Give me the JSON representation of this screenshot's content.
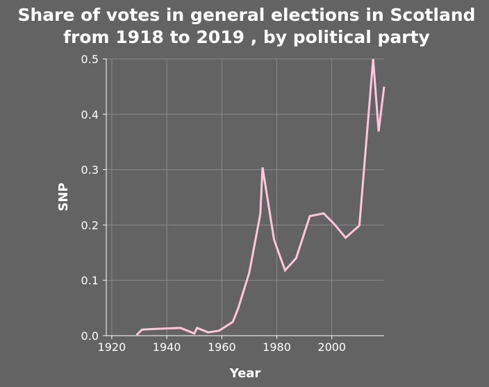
{
  "chart_data": {
    "type": "line",
    "title": [
      "Share of votes in general elections in Scotland",
      "from 1918 to 2019 , by political party"
    ],
    "xlabel": "Year",
    "ylabel": "SNP",
    "xlim": [
      1918,
      2019
    ],
    "ylim": [
      0,
      0.5
    ],
    "x_ticks": [
      1920,
      1940,
      1960,
      1980,
      2000
    ],
    "x_tick_labels": [
      "1920",
      "1940",
      "1960",
      "1980",
      "2000"
    ],
    "y_ticks": [
      0,
      0.1,
      0.2,
      0.3,
      0.4,
      0.5
    ],
    "y_tick_labels": [
      "0.0",
      "0.1",
      "0.2",
      "0.3",
      "0.4",
      "0.5"
    ],
    "grid": true,
    "line_color": "#ffc6dc",
    "series": [
      {
        "x": [
          1929,
          1931,
          1935,
          1945,
          1950,
          1951,
          1955,
          1959,
          1964,
          1966,
          1970,
          1974,
          1974.8,
          1979,
          1983,
          1987,
          1992,
          1997,
          2001,
          2005,
          2010,
          2015,
          2017,
          2019
        ],
        "values": [
          0.001,
          0.011,
          0.012,
          0.014,
          0.004,
          0.014,
          0.006,
          0.009,
          0.025,
          0.05,
          0.114,
          0.22,
          0.304,
          0.173,
          0.118,
          0.14,
          0.216,
          0.221,
          0.201,
          0.177,
          0.199,
          0.5,
          0.369,
          0.45
        ]
      }
    ]
  }
}
